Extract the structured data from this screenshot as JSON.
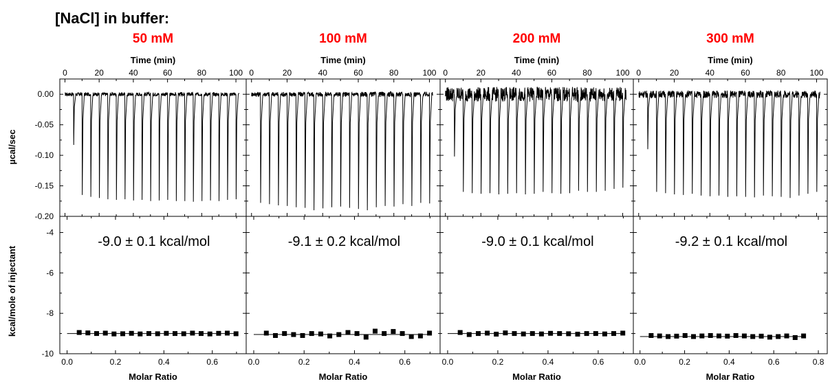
{
  "figure": {
    "title": "[NaCl] in buffer:",
    "top_y_label": "µcal/sec",
    "bottom_y_label": "kcal/mole of injectant"
  },
  "chart_data": [
    {
      "type": "line",
      "panel": "raw thermogram",
      "condition": "50 mM",
      "xlabel": "Time (min)",
      "xlim": [
        -3,
        106
      ],
      "xticks": [
        "0",
        "20",
        "40",
        "60",
        "80",
        "100"
      ],
      "ylim": [
        -0.2,
        0.025
      ],
      "yticks": [
        "0.00",
        "-0.05",
        "-0.10",
        "-0.15",
        "-0.20"
      ],
      "baseline": 0.0,
      "noise": 0.003,
      "injections": {
        "time": [
          5,
          10,
          15,
          20,
          25,
          30,
          35,
          40,
          45,
          50,
          55,
          60,
          65,
          70,
          75,
          80,
          85,
          90,
          95,
          100
        ],
        "peak": [
          -0.083,
          -0.165,
          -0.168,
          -0.17,
          -0.172,
          -0.173,
          -0.172,
          -0.174,
          -0.173,
          -0.175,
          -0.174,
          -0.173,
          -0.175,
          -0.175,
          -0.176,
          -0.175,
          -0.174,
          -0.175,
          -0.173,
          -0.172
        ]
      }
    },
    {
      "type": "scatter",
      "panel": "integrated heats",
      "condition": "50 mM",
      "xlabel": "Molar Ratio",
      "xlim": [
        -0.03,
        0.74
      ],
      "xticks": [
        "0.0",
        "0.2",
        "0.4",
        "0.6"
      ],
      "ylim": [
        -10,
        -3.2
      ],
      "yticks": [
        "-4",
        "-6",
        "-8",
        "-10"
      ],
      "annotation": "-9.0 ± 0.1 kcal/mol",
      "fit_line_y": -9.0,
      "fit_x": [
        0.0,
        0.7
      ],
      "x": [
        0.05,
        0.086,
        0.122,
        0.158,
        0.194,
        0.23,
        0.266,
        0.302,
        0.338,
        0.374,
        0.41,
        0.446,
        0.482,
        0.518,
        0.554,
        0.59,
        0.626,
        0.662,
        0.698
      ],
      "y": [
        -8.95,
        -8.97,
        -9.0,
        -8.98,
        -9.02,
        -9.01,
        -8.99,
        -9.02,
        -9.0,
        -9.01,
        -8.99,
        -9.0,
        -9.01,
        -8.98,
        -9.0,
        -9.02,
        -8.99,
        -8.98,
        -9.01
      ]
    },
    {
      "type": "line",
      "panel": "raw thermogram",
      "condition": "100 mM",
      "xlabel": "Time (min)",
      "xlim": [
        -3,
        106
      ],
      "xticks": [
        "0",
        "20",
        "40",
        "60",
        "80",
        "100"
      ],
      "ylim": [
        -0.2,
        0.025
      ],
      "yticks": [
        "0.00",
        "-0.05",
        "-0.10",
        "-0.15",
        "-0.20"
      ],
      "baseline": 0.0,
      "noise": 0.004,
      "injections": {
        "time": [
          5,
          10,
          15,
          20,
          25,
          30,
          35,
          40,
          45,
          50,
          55,
          60,
          65,
          70,
          75,
          80,
          85,
          90,
          95,
          100
        ],
        "peak": [
          -0.178,
          -0.18,
          -0.182,
          -0.183,
          -0.185,
          -0.186,
          -0.19,
          -0.187,
          -0.185,
          -0.184,
          -0.186,
          -0.188,
          -0.19,
          -0.185,
          -0.183,
          -0.184,
          -0.18,
          -0.183,
          -0.178,
          -0.179
        ]
      }
    },
    {
      "type": "scatter",
      "panel": "integrated heats",
      "condition": "100 mM",
      "xlabel": "Molar Ratio",
      "xlim": [
        -0.03,
        0.74
      ],
      "xticks": [
        "0.0",
        "0.2",
        "0.4",
        "0.6"
      ],
      "ylim": [
        -10,
        -3.2
      ],
      "yticks": [
        "-4",
        "-6",
        "-8",
        "-10"
      ],
      "annotation": "-9.1 ± 0.2 kcal/mol",
      "fit_line_y": -9.05,
      "fit_x": [
        0.0,
        0.7
      ],
      "x": [
        0.05,
        0.086,
        0.122,
        0.158,
        0.194,
        0.23,
        0.266,
        0.302,
        0.338,
        0.374,
        0.41,
        0.446,
        0.482,
        0.518,
        0.554,
        0.59,
        0.626,
        0.662,
        0.698
      ],
      "y": [
        -8.98,
        -9.1,
        -9.0,
        -9.05,
        -9.1,
        -9.0,
        -9.02,
        -9.12,
        -9.05,
        -8.95,
        -9.0,
        -9.18,
        -8.88,
        -9.0,
        -8.9,
        -9.0,
        -9.15,
        -9.12,
        -8.98
      ]
    },
    {
      "type": "line",
      "panel": "raw thermogram",
      "condition": "200 mM",
      "xlabel": "Time (min)",
      "xlim": [
        -3,
        106
      ],
      "xticks": [
        "0",
        "20",
        "40",
        "60",
        "80",
        "100"
      ],
      "ylim": [
        -0.2,
        0.025
      ],
      "yticks": [
        "0.00",
        "-0.05",
        "-0.10",
        "-0.15",
        "-0.20"
      ],
      "baseline": 0.0,
      "noise": 0.012,
      "injections": {
        "time": [
          5,
          10,
          15,
          20,
          25,
          30,
          35,
          40,
          45,
          50,
          55,
          60,
          65,
          70,
          75,
          80,
          85,
          90,
          95,
          100
        ],
        "peak": [
          -0.102,
          -0.16,
          -0.162,
          -0.163,
          -0.162,
          -0.164,
          -0.163,
          -0.162,
          -0.164,
          -0.163,
          -0.16,
          -0.162,
          -0.163,
          -0.162,
          -0.158,
          -0.16,
          -0.16,
          -0.158,
          -0.155,
          -0.153
        ]
      }
    },
    {
      "type": "scatter",
      "panel": "integrated heats",
      "condition": "200 mM",
      "xlabel": "Molar Ratio",
      "xlim": [
        -0.03,
        0.74
      ],
      "xticks": [
        "0.0",
        "0.2",
        "0.4",
        "0.6"
      ],
      "ylim": [
        -10,
        -3.2
      ],
      "yticks": [
        "-4",
        "-6",
        "-8",
        "-10"
      ],
      "annotation": "-9.0 ± 0.1 kcal/mol",
      "fit_line_y": -9.0,
      "fit_x": [
        0.0,
        0.7
      ],
      "x": [
        0.05,
        0.086,
        0.122,
        0.158,
        0.194,
        0.23,
        0.266,
        0.302,
        0.338,
        0.374,
        0.41,
        0.446,
        0.482,
        0.518,
        0.554,
        0.59,
        0.626,
        0.662,
        0.698
      ],
      "y": [
        -8.95,
        -9.05,
        -9.0,
        -8.98,
        -9.03,
        -8.97,
        -9.0,
        -9.02,
        -9.0,
        -9.02,
        -8.99,
        -9.0,
        -9.01,
        -9.03,
        -9.0,
        -9.0,
        -9.02,
        -9.0,
        -8.98
      ]
    },
    {
      "type": "line",
      "panel": "raw thermogram",
      "condition": "300 mM",
      "xlabel": "Time (min)",
      "xlim": [
        -3,
        106
      ],
      "xticks": [
        "0",
        "20",
        "40",
        "60",
        "80",
        "100"
      ],
      "ylim": [
        -0.2,
        0.025
      ],
      "yticks": [
        "0.00",
        "-0.05",
        "-0.10",
        "-0.15",
        "-0.20"
      ],
      "baseline": 0.0,
      "noise": 0.006,
      "injections": {
        "time": [
          5,
          10,
          15,
          20,
          25,
          30,
          35,
          40,
          45,
          50,
          55,
          60,
          65,
          70,
          75,
          80,
          85,
          90,
          95,
          100
        ],
        "peak": [
          -0.09,
          -0.16,
          -0.162,
          -0.164,
          -0.165,
          -0.163,
          -0.166,
          -0.167,
          -0.166,
          -0.168,
          -0.167,
          -0.168,
          -0.169,
          -0.166,
          -0.167,
          -0.168,
          -0.17,
          -0.166,
          -0.163,
          -0.16
        ]
      }
    },
    {
      "type": "scatter",
      "panel": "integrated heats",
      "condition": "300 mM",
      "xlabel": "Molar Ratio",
      "xlim": [
        -0.03,
        0.84
      ],
      "xticks": [
        "0.0",
        "0.2",
        "0.4",
        "0.6",
        "0.8"
      ],
      "ylim": [
        -10,
        -3.2
      ],
      "yticks": [
        "-4",
        "-6",
        "-8",
        "-10"
      ],
      "annotation": "-9.2 ± 0.1 kcal/mol",
      "fit_line_y": -9.15,
      "fit_x": [
        0.0,
        0.74
      ],
      "x": [
        0.05,
        0.088,
        0.126,
        0.164,
        0.202,
        0.24,
        0.278,
        0.316,
        0.354,
        0.392,
        0.43,
        0.468,
        0.506,
        0.544,
        0.582,
        0.62,
        0.658,
        0.696,
        0.734
      ],
      "y": [
        -9.1,
        -9.12,
        -9.15,
        -9.13,
        -9.1,
        -9.15,
        -9.12,
        -9.1,
        -9.12,
        -9.13,
        -9.1,
        -9.12,
        -9.15,
        -9.13,
        -9.18,
        -9.15,
        -9.12,
        -9.2,
        -9.12
      ]
    }
  ]
}
